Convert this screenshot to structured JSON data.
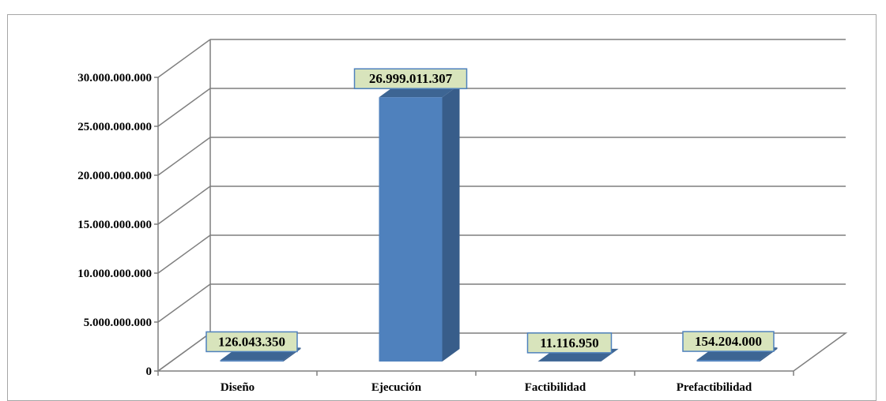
{
  "chart_data": {
    "type": "bar",
    "style": "3d-column",
    "categories": [
      "Diseño",
      "Ejecución",
      "Factibilidad",
      "Prefactibilidad"
    ],
    "values": [
      126043350,
      26999011307,
      11116950,
      154204000
    ],
    "data_labels": [
      "126.043.350",
      "26.999.011.307",
      "11.116.950",
      "154.204.000"
    ],
    "y_ticks": [
      {
        "value": 0,
        "label": "0"
      },
      {
        "value": 5000000000,
        "label": "5.000.000.000"
      },
      {
        "value": 10000000000,
        "label": "10.000.000.000"
      },
      {
        "value": 15000000000,
        "label": "15.000.000.000"
      },
      {
        "value": 20000000000,
        "label": "20.000.000.000"
      },
      {
        "value": 25000000000,
        "label": "25.000.000.000"
      },
      {
        "value": 30000000000,
        "label": "30.000.000.000"
      }
    ],
    "ylim": [
      0,
      30000000000
    ],
    "title": "",
    "xlabel": "",
    "ylabel": "",
    "grid": true,
    "legend": "none",
    "colors": {
      "bar_front": "#4f81bd",
      "bar_side": "#385d8a",
      "bar_top": "#3d6593",
      "label_box_fill": "#d8e4bc",
      "label_box_border": "#4f81bd",
      "grid": "#7f7f7f",
      "frame": "#a6a6a6"
    }
  }
}
